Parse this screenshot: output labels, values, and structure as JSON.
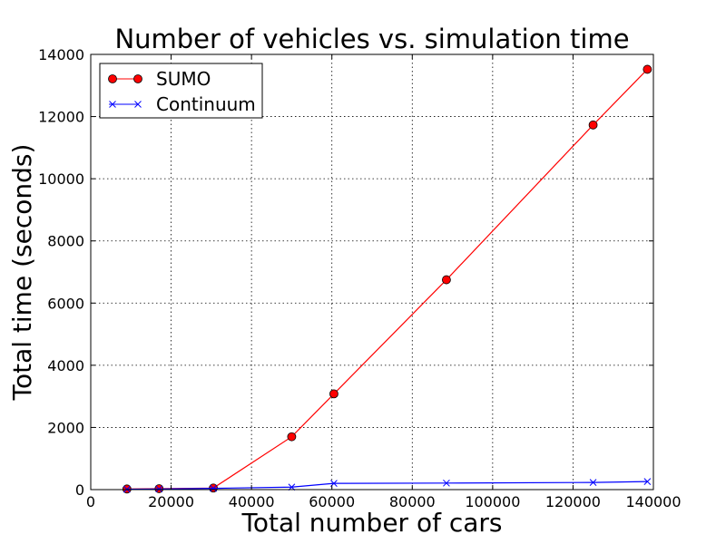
{
  "chart_data": {
    "type": "line",
    "title": "Number of vehicles vs. simulation time",
    "xlabel": "Total number of cars",
    "ylabel": "Total time (seconds)",
    "xlim": [
      0,
      140000
    ],
    "ylim": [
      0,
      14000
    ],
    "xticks": [
      0,
      20000,
      40000,
      60000,
      80000,
      100000,
      120000,
      140000
    ],
    "yticks": [
      0,
      2000,
      4000,
      6000,
      8000,
      10000,
      12000,
      14000
    ],
    "xtick_labels": [
      "0",
      "20000",
      "40000",
      "60000",
      "80000",
      "100000",
      "120000",
      "140000"
    ],
    "ytick_labels": [
      "0",
      "2000",
      "4000",
      "6000",
      "8000",
      "10000",
      "12000",
      "14000"
    ],
    "grid": true,
    "legend_position": "top-left",
    "series": [
      {
        "name": "SUMO",
        "color": "#ff0000",
        "marker": "circle",
        "x": [
          9000,
          17000,
          30500,
          50000,
          60500,
          88500,
          125000,
          138500
        ],
        "y": [
          20,
          30,
          50,
          1700,
          3080,
          6750,
          11730,
          13520
        ]
      },
      {
        "name": "Continuum",
        "color": "#0000ff",
        "marker": "x",
        "x": [
          9000,
          17000,
          30500,
          50000,
          60500,
          88500,
          125000,
          138500
        ],
        "y": [
          10,
          20,
          40,
          80,
          200,
          210,
          230,
          260
        ]
      }
    ]
  }
}
